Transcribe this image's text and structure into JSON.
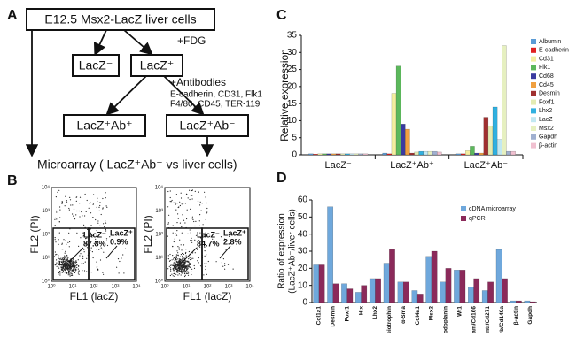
{
  "panel_labels": [
    "A",
    "B",
    "C",
    "D"
  ],
  "panel_a": {
    "source": "E12.5 Msx2-LacZ liver cells",
    "fdg": "+FDG",
    "lacz_neg": "LacZ⁻",
    "lacz_pos": "LacZ⁺",
    "antibodies": "+Antibodies",
    "antibody_list": [
      "E-cadherin, CD31, Flk1",
      "F4/80, CD45, TER-119"
    ],
    "ab_pos": "LacZ⁺Ab⁺",
    "ab_neg": "LacZ⁺Ab⁻",
    "result": "Microarray ( LacZ⁺Ab⁻ vs liver cells)"
  },
  "panel_b": {
    "y_label": "FL2 (PI)",
    "x_label": "FL1 (lacZ)",
    "ticks": [
      "10⁰",
      "10¹",
      "10²",
      "10³",
      "10⁴"
    ],
    "plots": [
      {
        "neg_label": "LacZ⁻",
        "neg_pct": "87.8%",
        "pos_label": "LacZ⁺",
        "pos_pct": "0.9%"
      },
      {
        "neg_label": "LacZ⁻",
        "neg_pct": "84.7%",
        "pos_label": "LacZ⁺",
        "pos_pct": "2.8%"
      }
    ]
  },
  "chart_data": [
    {
      "type": "bar",
      "y_label": [
        "Relative expression"
      ],
      "categories": [
        "LacZ⁻",
        "LacZ⁺Ab⁺",
        "LacZ⁺Ab⁻"
      ],
      "ylim": [
        0,
        35
      ],
      "yticks": [
        0,
        5,
        10,
        15,
        20,
        25,
        30,
        35
      ],
      "series": [
        {
          "name": "Albumin",
          "color": "#5b9bd5",
          "values": [
            0.3,
            0.5,
            0.3
          ]
        },
        {
          "name": "E-cadherin",
          "color": "#e02020",
          "values": [
            0.2,
            0.3,
            0.3
          ]
        },
        {
          "name": "Cd31",
          "color": "#f3eea0",
          "values": [
            0.3,
            18,
            1.2
          ]
        },
        {
          "name": "Flk1",
          "color": "#5cb85c",
          "values": [
            0.3,
            26,
            2.5
          ]
        },
        {
          "name": "Cd68",
          "color": "#3a3aa0",
          "values": [
            0.3,
            9,
            0.5
          ]
        },
        {
          "name": "Cd45",
          "color": "#f0a040",
          "values": [
            0.3,
            7.5,
            0.5
          ]
        },
        {
          "name": "Desmin",
          "color": "#a03030",
          "values": [
            0.3,
            0.5,
            11
          ]
        },
        {
          "name": "Foxf1",
          "color": "#e3ebb3",
          "values": [
            0.3,
            0.8,
            8.5
          ]
        },
        {
          "name": "Lhx2",
          "color": "#30b0e0",
          "values": [
            0.3,
            1,
            14
          ]
        },
        {
          "name": "LacZ",
          "color": "#c2e8f2",
          "values": [
            0.3,
            1,
            4.5
          ]
        },
        {
          "name": "Msx2",
          "color": "#e6f0c0",
          "values": [
            0.3,
            1,
            32
          ]
        },
        {
          "name": "Gapdh",
          "color": "#a0b0d0",
          "values": [
            0.3,
            1,
            1
          ]
        },
        {
          "name": "β-actin",
          "color": "#f0c0d0",
          "values": [
            0.3,
            0.8,
            1
          ]
        }
      ]
    },
    {
      "type": "bar",
      "y_label": [
        "Ratio of expression",
        "(LacZ⁺Ab⁻/liver cells)"
      ],
      "categories": [
        "Col1a1",
        "Desmin",
        "Foxf1",
        "Hlx",
        "Lhx2",
        "Pleiotrophin",
        "α-Sma",
        "Col4a1",
        "Msx2",
        "Podoplanin",
        "Wt1",
        "Alcam/Cd166",
        "p75ntr/Cd271",
        "Pdgfrb/Cd140a",
        "β-actin",
        "Gapdh"
      ],
      "ylim": [
        0,
        60
      ],
      "yticks": [
        0,
        10,
        20,
        30,
        40,
        50,
        60
      ],
      "series": [
        {
          "name": "cDNA microarray",
          "color": "#6fa8dc",
          "values": [
            22,
            56,
            11,
            6,
            14,
            23,
            12,
            7,
            27,
            12,
            19,
            9,
            7,
            31,
            1,
            1
          ]
        },
        {
          "name": "qPCR",
          "color": "#8b2a5a",
          "values": [
            22,
            11,
            8,
            10,
            14,
            31,
            12,
            5,
            30,
            20,
            19,
            14,
            12,
            14,
            1,
            0.5
          ]
        }
      ]
    }
  ]
}
